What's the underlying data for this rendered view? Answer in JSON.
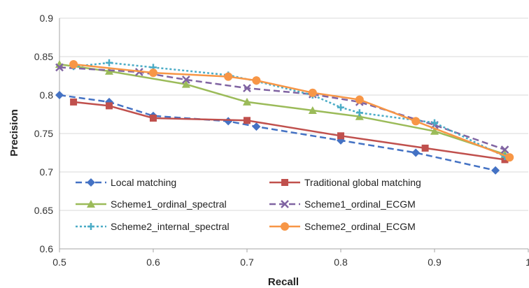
{
  "chart_data": {
    "type": "line",
    "title": "",
    "xlabel": "Recall",
    "ylabel": "Precision",
    "xlim": [
      0.5,
      1
    ],
    "ylim": [
      0.6,
      0.9
    ],
    "x_ticks": [
      "0.5",
      "0.6",
      "0.7",
      "0.8",
      "0.9",
      "1"
    ],
    "y_ticks": [
      "0.6",
      "0.65",
      "0.7",
      "0.75",
      "0.8",
      "0.85",
      "0.9"
    ],
    "grid": "horizontal",
    "legend": "inside-bottom-left",
    "series": [
      {
        "name": "Local matching",
        "color": "#4472C4",
        "line_style": "dashed",
        "marker": "diamond",
        "points": [
          [
            0.5,
            0.8
          ],
          [
            0.553,
            0.791
          ],
          [
            0.6,
            0.773
          ],
          [
            0.68,
            0.766
          ],
          [
            0.71,
            0.759
          ],
          [
            0.8,
            0.741
          ],
          [
            0.88,
            0.725
          ],
          [
            0.965,
            0.702
          ]
        ]
      },
      {
        "name": "Traditional global matching",
        "color": "#C0504D",
        "line_style": "solid",
        "marker": "square",
        "points": [
          [
            0.515,
            0.791
          ],
          [
            0.553,
            0.786
          ],
          [
            0.6,
            0.77
          ],
          [
            0.7,
            0.767
          ],
          [
            0.8,
            0.747
          ],
          [
            0.89,
            0.731
          ],
          [
            0.975,
            0.716
          ]
        ]
      },
      {
        "name": "Scheme1_ordinal_spectral",
        "color": "#9BBB59",
        "line_style": "solid",
        "marker": "triangle",
        "points": [
          [
            0.5,
            0.84
          ],
          [
            0.553,
            0.831
          ],
          [
            0.635,
            0.814
          ],
          [
            0.7,
            0.791
          ],
          [
            0.77,
            0.78
          ],
          [
            0.82,
            0.772
          ],
          [
            0.9,
            0.753
          ],
          [
            0.975,
            0.723
          ]
        ]
      },
      {
        "name": "Scheme1_ordinal_ECGM",
        "color": "#8064A2",
        "line_style": "dashed",
        "marker": "x",
        "points": [
          [
            0.5,
            0.836
          ],
          [
            0.585,
            0.83
          ],
          [
            0.635,
            0.82
          ],
          [
            0.7,
            0.809
          ],
          [
            0.77,
            0.801
          ],
          [
            0.82,
            0.791
          ],
          [
            0.9,
            0.761
          ],
          [
            0.975,
            0.729
          ]
        ]
      },
      {
        "name": "Scheme2_internal_spectral",
        "color": "#4BACC6",
        "line_style": "dotted",
        "marker": "plus",
        "points": [
          [
            0.515,
            0.837
          ],
          [
            0.553,
            0.842
          ],
          [
            0.6,
            0.836
          ],
          [
            0.68,
            0.826
          ],
          [
            0.71,
            0.818
          ],
          [
            0.77,
            0.8
          ],
          [
            0.8,
            0.784
          ],
          [
            0.82,
            0.777
          ],
          [
            0.9,
            0.764
          ],
          [
            0.975,
            0.72
          ]
        ]
      },
      {
        "name": "Scheme2_ordinal_ECGM",
        "color": "#F79646",
        "line_style": "solid",
        "marker": "circle",
        "points": [
          [
            0.515,
            0.84
          ],
          [
            0.6,
            0.829
          ],
          [
            0.68,
            0.824
          ],
          [
            0.71,
            0.819
          ],
          [
            0.77,
            0.803
          ],
          [
            0.82,
            0.794
          ],
          [
            0.88,
            0.766
          ],
          [
            0.98,
            0.719
          ]
        ]
      }
    ]
  }
}
